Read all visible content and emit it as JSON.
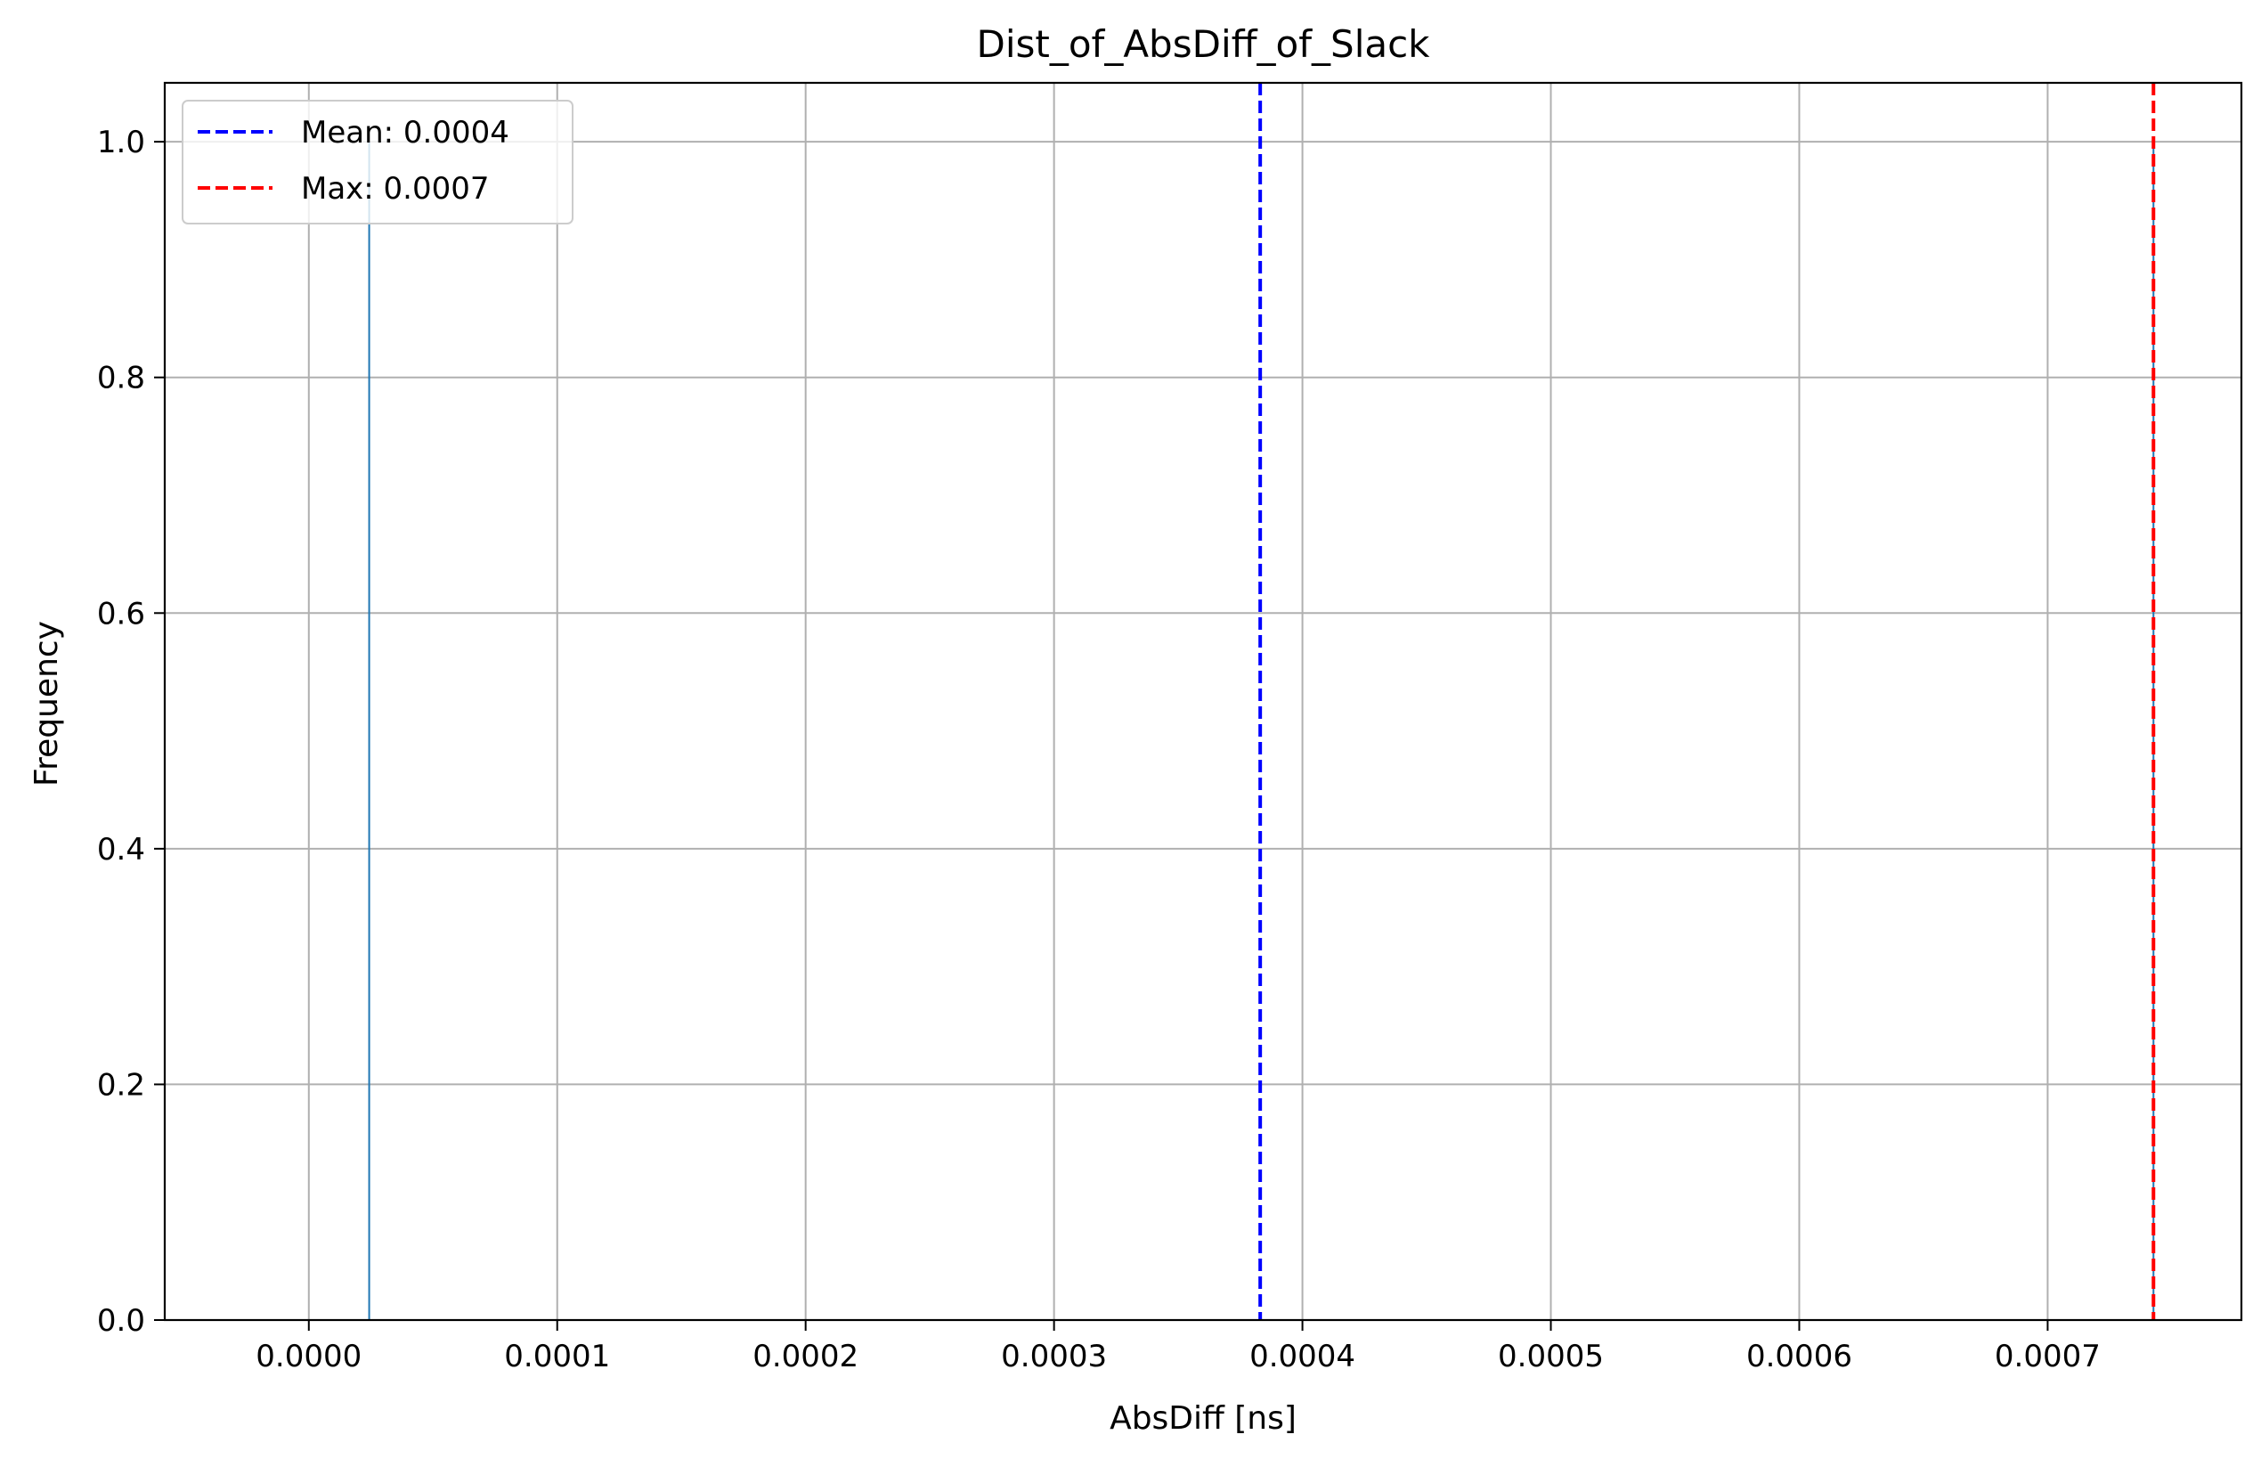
{
  "chart_data": {
    "type": "bar",
    "title": "Dist_of_AbsDiff_of_Slack",
    "xlabel": "AbsDiff [ns]",
    "ylabel": "Frequency",
    "xlim": [
      -5.8e-05,
      0.000778
    ],
    "ylim": [
      0,
      1.05
    ],
    "xticks": [
      0.0,
      0.0001,
      0.0002,
      0.0003,
      0.0004,
      0.0005,
      0.0006,
      0.0007
    ],
    "xtick_labels": [
      "0.0000",
      "0.0001",
      "0.0002",
      "0.0003",
      "0.0004",
      "0.0005",
      "0.0006",
      "0.0007"
    ],
    "yticks": [
      0.0,
      0.2,
      0.4,
      0.6,
      0.8,
      1.0
    ],
    "ytick_labels": [
      "0.0",
      "0.2",
      "0.4",
      "0.6",
      "0.8",
      "1.0"
    ],
    "grid": true,
    "bars": [
      {
        "x": 2.43e-05,
        "value": 1.0
      },
      {
        "x": 0.0007426,
        "value": 1.0
      }
    ],
    "bar_color": "#1f77b4",
    "reference_lines": [
      {
        "label": "Mean: 0.0004",
        "x": 0.000383,
        "color": "#0000ff",
        "style": "dashed"
      },
      {
        "label": "Max: 0.0007",
        "x": 0.0007426,
        "color": "#ff0000",
        "style": "dashed"
      }
    ],
    "legend_position": "upper-left"
  }
}
